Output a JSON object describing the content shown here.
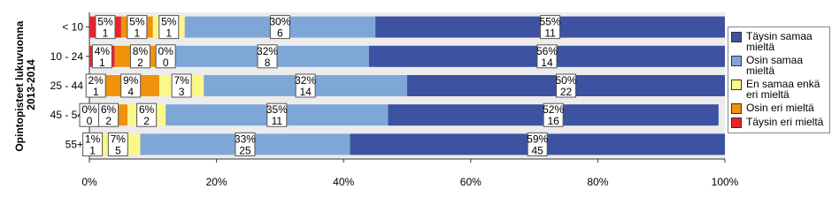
{
  "chart_data": {
    "type": "stacked_bar_horizontal",
    "y_label": [
      "Opintopisteet lukuvuonna",
      "2013-2014"
    ],
    "categories": [
      "< 10",
      "10 - 24",
      "25 - 44",
      "45 - 54",
      "55+"
    ],
    "series": [
      {
        "name": "Täysin eri mieltä",
        "color": "#e8242a",
        "values": [
          5,
          4,
          2,
          0,
          null
        ],
        "value_labels": [
          "5%",
          "4%",
          "2%",
          "0%",
          null
        ],
        "counts": [
          1,
          1,
          1,
          0,
          null
        ]
      },
      {
        "name": "Osin eri mieltä",
        "color": "#f0920c",
        "values": [
          5,
          8,
          9,
          6,
          1
        ],
        "value_labels": [
          "5%",
          "8%",
          "9%",
          "6%",
          "1%"
        ],
        "counts": [
          1,
          2,
          4,
          2,
          1
        ]
      },
      {
        "name": "En samaa enkä eri mieltä",
        "color": "#fbf88b",
        "values": [
          5,
          0,
          7,
          6,
          7
        ],
        "value_labels": [
          "5%",
          "0%",
          "7%",
          "6%",
          "7%"
        ],
        "counts": [
          1,
          0,
          3,
          2,
          5
        ]
      },
      {
        "name": "Osin samaa mieltä",
        "color": "#7ea7d8",
        "values": [
          30,
          32,
          32,
          35,
          33
        ],
        "value_labels": [
          "30%",
          "32%",
          "32%",
          "35%",
          "33%"
        ],
        "counts": [
          6,
          8,
          14,
          11,
          25
        ]
      },
      {
        "name": "Täysin samaa mieltä",
        "color": "#3d52a1",
        "values": [
          55,
          56,
          50,
          52,
          59
        ],
        "value_labels": [
          "55%",
          "56%",
          "50%",
          "52%",
          "59%"
        ],
        "counts": [
          11,
          14,
          22,
          16,
          45
        ]
      }
    ],
    "xlim": [
      0,
      100
    ],
    "xticks": [
      {
        "value": 0,
        "label": "0%"
      },
      {
        "value": 20,
        "label": "20%"
      },
      {
        "value": 40,
        "label": "40%"
      },
      {
        "value": 60,
        "label": "60%"
      },
      {
        "value": 80,
        "label": "80%"
      },
      {
        "value": 100,
        "label": "100%"
      }
    ],
    "legend": "right"
  }
}
